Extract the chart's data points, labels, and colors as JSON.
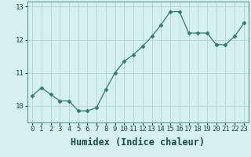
{
  "x": [
    0,
    1,
    2,
    3,
    4,
    5,
    6,
    7,
    8,
    9,
    10,
    11,
    12,
    13,
    14,
    15,
    16,
    17,
    18,
    19,
    20,
    21,
    22,
    23
  ],
  "y": [
    10.3,
    10.55,
    10.35,
    10.15,
    10.15,
    9.85,
    9.85,
    9.95,
    10.5,
    11.0,
    11.35,
    11.55,
    11.8,
    12.1,
    12.45,
    12.85,
    12.85,
    12.2,
    12.2,
    12.2,
    11.85,
    11.85,
    12.1,
    12.5
  ],
  "line_color": "#2e7d6e",
  "marker": "D",
  "marker_size": 2.5,
  "bg_color": "#d6f0ef",
  "grid_color": "#b8d8d5",
  "xlabel": "Humidex (Indice chaleur)",
  "ylim": [
    9.5,
    13.15
  ],
  "xlim": [
    -0.5,
    23.5
  ],
  "yticks": [
    10,
    11,
    12,
    13
  ],
  "xticks": [
    0,
    1,
    2,
    3,
    4,
    5,
    6,
    7,
    8,
    9,
    10,
    11,
    12,
    13,
    14,
    15,
    16,
    17,
    18,
    19,
    20,
    21,
    22,
    23
  ],
  "tick_fontsize": 6.5,
  "xlabel_fontsize": 8.5,
  "spine_color": "#5a9a90"
}
